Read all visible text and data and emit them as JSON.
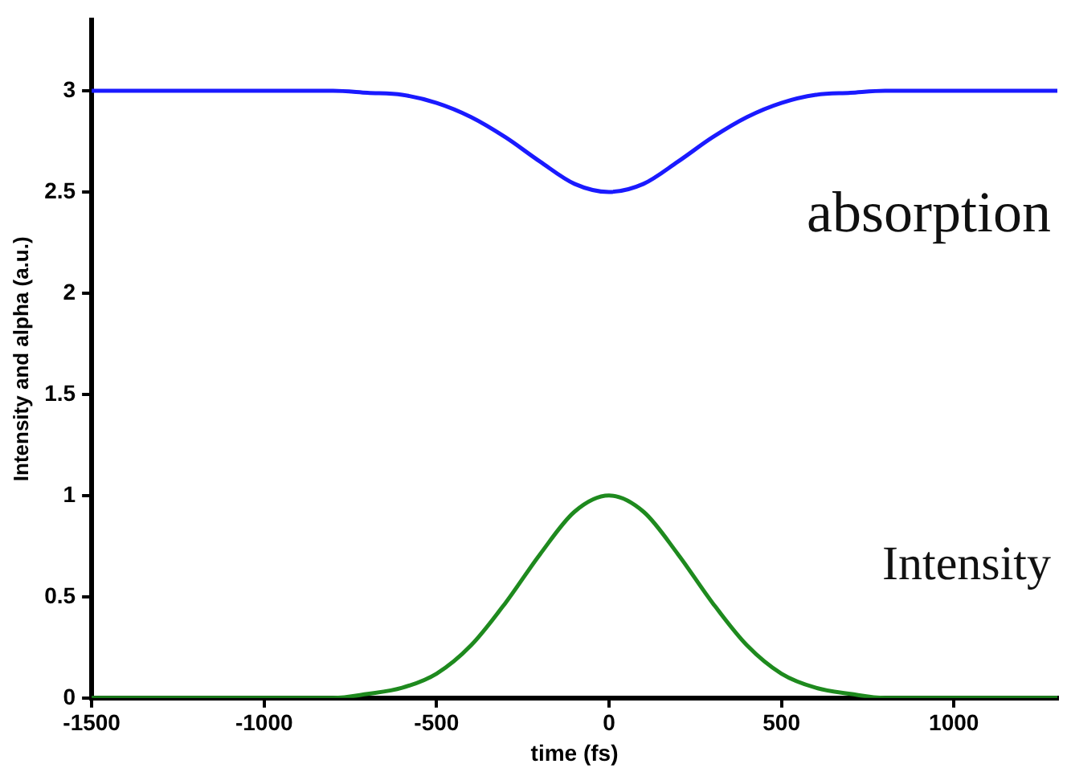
{
  "chart_data": {
    "type": "line",
    "xlabel": "time (fs)",
    "ylabel": "Intensity and alpha (a.u.)",
    "x": [
      -1500,
      -1400,
      -1300,
      -1200,
      -1100,
      -1000,
      -900,
      -800,
      -700,
      -600,
      -500,
      -400,
      -300,
      -200,
      -100,
      0,
      100,
      200,
      300,
      400,
      500,
      600,
      700,
      800,
      900,
      1000,
      1100,
      1200,
      1300
    ],
    "series": [
      {
        "name": "absorption",
        "color": "#1a1aff",
        "values": [
          3,
          3,
          3,
          3,
          3,
          3,
          3,
          3,
          2.99,
          2.98,
          2.94,
          2.87,
          2.77,
          2.65,
          2.54,
          2.5,
          2.54,
          2.65,
          2.77,
          2.87,
          2.94,
          2.98,
          2.99,
          3,
          3,
          3,
          3,
          3,
          3
        ]
      },
      {
        "name": "Intensity",
        "color": "#1e8a1e",
        "values": [
          0,
          0,
          0,
          0,
          0,
          0,
          0,
          0,
          0.02,
          0.05,
          0.12,
          0.26,
          0.47,
          0.71,
          0.92,
          1,
          0.92,
          0.71,
          0.47,
          0.26,
          0.12,
          0.05,
          0.02,
          0,
          0,
          0,
          0,
          0,
          0
        ]
      }
    ],
    "xlim": [
      -1500,
      1300
    ],
    "xticks": [
      -1500,
      -1000,
      -500,
      0,
      500,
      1000
    ],
    "ylim": [
      0,
      3.35
    ],
    "yticks": [
      0,
      0.5,
      1,
      1.5,
      2,
      2.5,
      3
    ],
    "grid": false,
    "legend": false,
    "marker": "none",
    "line_style": "solid"
  }
}
